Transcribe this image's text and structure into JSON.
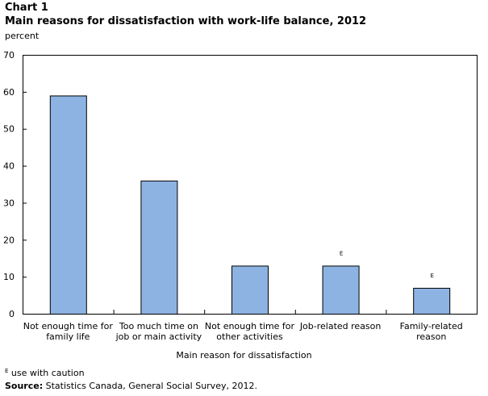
{
  "chart_data": {
    "type": "bar",
    "title": "Chart 1",
    "subtitle": "Main reasons for dissatisfaction with work-life  balance, 2012",
    "ylabel": "percent",
    "xlabel": "Main reason for dissatisfaction",
    "categories": [
      [
        "Not enough time for",
        "family life"
      ],
      [
        "Too much time on",
        "job or main activity"
      ],
      [
        "Not enough time for",
        "other activities"
      ],
      [
        "Job-related reason"
      ],
      [
        "Family-related",
        "reason"
      ]
    ],
    "values": [
      59,
      36,
      13,
      13,
      7
    ],
    "flags": [
      "",
      "",
      "",
      "E",
      "E"
    ],
    "ylim": [
      0,
      70
    ],
    "yticks": [
      0,
      10,
      20,
      30,
      40,
      50,
      60,
      70
    ],
    "grid": false,
    "bar_color": "#8DB3E2"
  },
  "footnote": {
    "marker": "E",
    "text": " use with caution"
  },
  "source": {
    "label": "Source:",
    "text": " Statistics Canada, General Social Survey, 2012."
  }
}
